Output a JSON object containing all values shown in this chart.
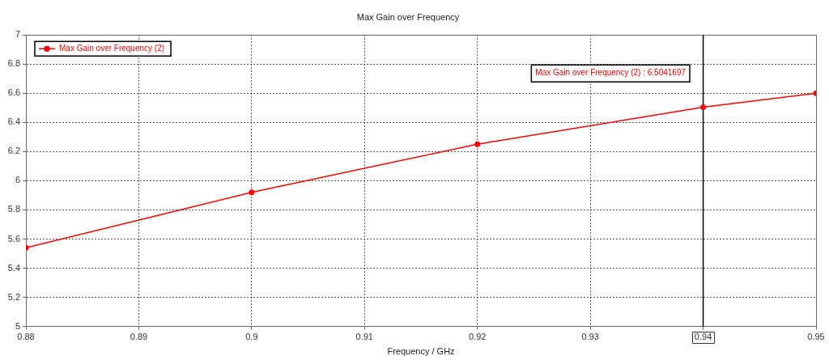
{
  "chart_data": {
    "type": "line",
    "title": "Max Gain over Frequency",
    "xlabel": "Frequency / GHz",
    "x": [
      0.88,
      0.9,
      0.92,
      0.94,
      0.95
    ],
    "series": [
      {
        "name": "Max Gain over Frequency (2)",
        "color": "#ff0000",
        "values": [
          5.54,
          5.92,
          6.25,
          6.5041697,
          6.6
        ]
      }
    ],
    "xlim": [
      0.88,
      0.95
    ],
    "xticks": [
      0.88,
      0.89,
      0.9,
      0.91,
      0.92,
      0.93,
      {
        "value": 0.94,
        "label": null
      },
      0.95
    ],
    "ylim": [
      5,
      7
    ],
    "yticks": [
      5,
      5.2,
      5.4,
      5.6,
      5.8,
      6,
      6.2,
      6.4,
      6.6,
      6.8,
      7
    ],
    "ref_lines": [
      {
        "axis": "x",
        "value": 0.94,
        "label": "0.94",
        "color": "#000000"
      }
    ],
    "annotations": [
      "Max Gain over Frequency (2) : 6.5041697"
    ],
    "grid": true,
    "legend": "top left",
    "marker": "circle",
    "line_style": "solid"
  }
}
